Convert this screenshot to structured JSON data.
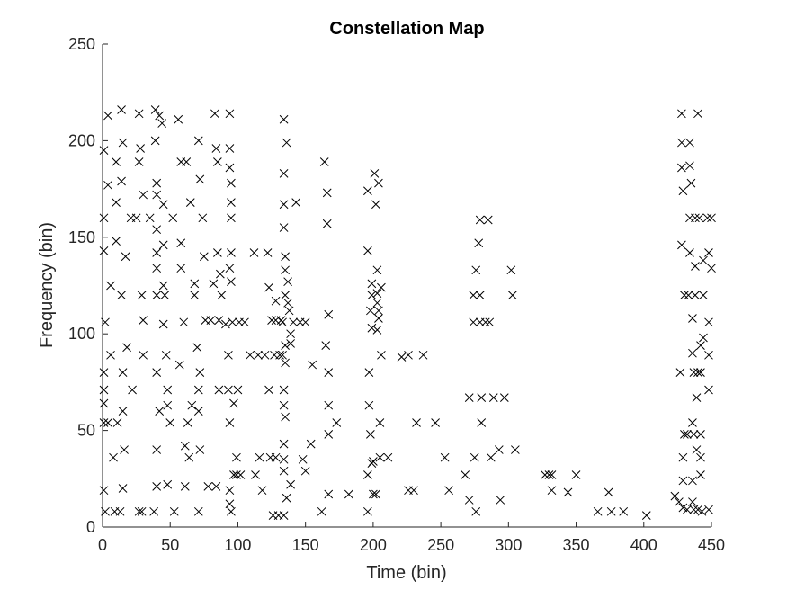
{
  "chart_data": {
    "type": "scatter",
    "title": "Constellation Map",
    "xlabel": "Time (bin)",
    "ylabel": "Frequency (bin)",
    "xlim": [
      0,
      450
    ],
    "ylim": [
      0,
      250
    ],
    "xticks": [
      0,
      50,
      100,
      150,
      200,
      250,
      300,
      350,
      400,
      450
    ],
    "yticks": [
      0,
      50,
      100,
      150,
      200,
      250
    ],
    "marker": "x",
    "marker_color": "#000000",
    "grid": false,
    "box": false,
    "points": [
      [
        1,
        195
      ],
      [
        1,
        160
      ],
      [
        1,
        143
      ],
      [
        2,
        106
      ],
      [
        1,
        80
      ],
      [
        1,
        71
      ],
      [
        1,
        64
      ],
      [
        1,
        54
      ],
      [
        1,
        19
      ],
      [
        2,
        8
      ],
      [
        4,
        213
      ],
      [
        4,
        177
      ],
      [
        6,
        125
      ],
      [
        6,
        89
      ],
      [
        4,
        54
      ],
      [
        9,
        8
      ],
      [
        10,
        189
      ],
      [
        10,
        168
      ],
      [
        10,
        148
      ],
      [
        8,
        36
      ],
      [
        11,
        54
      ],
      [
        13,
        8
      ],
      [
        14,
        216
      ],
      [
        15,
        199
      ],
      [
        14,
        179
      ],
      [
        14,
        120
      ],
      [
        15,
        80
      ],
      [
        15,
        60
      ],
      [
        16,
        40
      ],
      [
        15,
        20
      ],
      [
        17,
        140
      ],
      [
        18,
        93
      ],
      [
        21,
        160
      ],
      [
        22,
        71
      ],
      [
        25,
        160
      ],
      [
        27,
        214
      ],
      [
        27,
        189
      ],
      [
        28,
        196
      ],
      [
        27,
        8
      ],
      [
        29,
        8
      ],
      [
        29,
        120
      ],
      [
        30,
        172
      ],
      [
        30,
        107
      ],
      [
        30,
        89
      ],
      [
        35,
        160
      ],
      [
        38,
        8
      ],
      [
        39,
        200
      ],
      [
        39,
        216
      ],
      [
        40,
        178
      ],
      [
        40,
        172
      ],
      [
        40,
        154
      ],
      [
        40,
        142
      ],
      [
        40,
        134
      ],
      [
        40,
        120
      ],
      [
        40,
        80
      ],
      [
        40,
        40
      ],
      [
        40,
        21
      ],
      [
        42,
        60
      ],
      [
        42,
        213
      ],
      [
        44,
        209
      ],
      [
        45,
        167
      ],
      [
        45,
        146
      ],
      [
        45,
        125
      ],
      [
        45,
        105
      ],
      [
        46,
        120
      ],
      [
        47,
        89
      ],
      [
        48,
        71
      ],
      [
        48,
        63
      ],
      [
        48,
        22
      ],
      [
        50,
        54
      ],
      [
        52,
        160
      ],
      [
        53,
        8
      ],
      [
        56,
        211
      ],
      [
        57,
        84
      ],
      [
        58,
        189
      ],
      [
        58,
        147
      ],
      [
        58,
        134
      ],
      [
        60,
        106
      ],
      [
        61,
        42
      ],
      [
        61,
        21
      ],
      [
        62,
        189
      ],
      [
        63,
        54
      ],
      [
        64,
        36
      ],
      [
        65,
        168
      ],
      [
        66,
        63
      ],
      [
        68,
        126
      ],
      [
        68,
        120
      ],
      [
        70,
        93
      ],
      [
        71,
        71
      ],
      [
        71,
        60
      ],
      [
        71,
        200
      ],
      [
        71,
        8
      ],
      [
        72,
        80
      ],
      [
        72,
        40
      ],
      [
        72,
        180
      ],
      [
        74,
        160
      ],
      [
        75,
        140
      ],
      [
        76,
        107
      ],
      [
        78,
        21
      ],
      [
        80,
        107
      ],
      [
        82,
        126
      ],
      [
        83,
        214
      ],
      [
        84,
        196
      ],
      [
        84,
        21
      ],
      [
        85,
        189
      ],
      [
        85,
        142
      ],
      [
        86,
        107
      ],
      [
        86,
        71
      ],
      [
        87,
        131
      ],
      [
        88,
        120
      ],
      [
        91,
        105
      ],
      [
        94,
        214
      ],
      [
        94,
        196
      ],
      [
        94,
        186
      ],
      [
        93,
        71
      ],
      [
        94,
        54
      ],
      [
        94,
        134
      ],
      [
        93,
        89
      ],
      [
        94,
        12
      ],
      [
        95,
        8
      ],
      [
        94,
        19
      ],
      [
        95,
        178
      ],
      [
        95,
        168
      ],
      [
        95,
        160
      ],
      [
        95,
        142
      ],
      [
        95,
        127
      ],
      [
        96,
        106
      ],
      [
        97,
        64
      ],
      [
        97,
        27
      ],
      [
        99,
        27
      ],
      [
        99,
        36
      ],
      [
        100,
        71
      ],
      [
        101,
        106
      ],
      [
        102,
        27
      ],
      [
        105,
        106
      ],
      [
        109,
        89
      ],
      [
        112,
        142
      ],
      [
        113,
        27
      ],
      [
        115,
        89
      ],
      [
        116,
        36
      ],
      [
        118,
        19
      ],
      [
        120,
        89
      ],
      [
        122,
        142
      ],
      [
        123,
        124
      ],
      [
        123,
        71
      ],
      [
        124,
        36
      ],
      [
        125,
        107
      ],
      [
        126,
        6
      ],
      [
        127,
        89
      ],
      [
        128,
        117
      ],
      [
        128,
        107
      ],
      [
        128,
        36
      ],
      [
        130,
        6
      ],
      [
        131,
        89
      ],
      [
        132,
        107
      ],
      [
        133,
        106
      ],
      [
        133,
        89
      ],
      [
        134,
        211
      ],
      [
        134,
        183
      ],
      [
        134,
        167
      ],
      [
        134,
        155
      ],
      [
        135,
        140
      ],
      [
        135,
        133
      ],
      [
        135,
        120
      ],
      [
        135,
        94
      ],
      [
        135,
        85
      ],
      [
        134,
        71
      ],
      [
        134,
        63
      ],
      [
        135,
        57
      ],
      [
        134,
        43
      ],
      [
        134,
        35
      ],
      [
        134,
        29
      ],
      [
        134,
        6
      ],
      [
        136,
        199
      ],
      [
        136,
        15
      ],
      [
        137,
        127
      ],
      [
        137,
        116
      ],
      [
        138,
        112
      ],
      [
        139,
        100
      ],
      [
        139,
        95
      ],
      [
        139,
        22
      ],
      [
        141,
        106
      ],
      [
        143,
        168
      ],
      [
        146,
        106
      ],
      [
        148,
        35
      ],
      [
        150,
        106
      ],
      [
        150,
        29
      ],
      [
        154,
        43
      ],
      [
        155,
        84
      ],
      [
        162,
        8
      ],
      [
        164,
        189
      ],
      [
        165,
        94
      ],
      [
        166,
        173
      ],
      [
        166,
        157
      ],
      [
        167,
        110
      ],
      [
        167,
        80
      ],
      [
        167,
        63
      ],
      [
        167,
        48
      ],
      [
        167,
        17
      ],
      [
        173,
        54
      ],
      [
        182,
        17
      ],
      [
        196,
        8
      ],
      [
        196,
        27
      ],
      [
        196,
        174
      ],
      [
        196,
        143
      ],
      [
        197,
        80
      ],
      [
        197,
        63
      ],
      [
        198,
        112
      ],
      [
        198,
        48
      ],
      [
        199,
        33
      ],
      [
        199,
        126
      ],
      [
        199,
        120
      ],
      [
        199,
        103
      ],
      [
        200,
        34
      ],
      [
        200,
        17
      ],
      [
        201,
        183
      ],
      [
        202,
        167
      ],
      [
        202,
        17
      ],
      [
        203,
        121
      ],
      [
        203,
        116
      ],
      [
        203,
        133
      ],
      [
        203,
        102
      ],
      [
        204,
        178
      ],
      [
        204,
        112
      ],
      [
        204,
        108
      ],
      [
        205,
        36
      ],
      [
        205,
        54
      ],
      [
        206,
        89
      ],
      [
        206,
        124
      ],
      [
        211,
        36
      ],
      [
        221,
        88
      ],
      [
        226,
        89
      ],
      [
        226,
        19
      ],
      [
        230,
        19
      ],
      [
        232,
        54
      ],
      [
        237,
        89
      ],
      [
        246,
        54
      ],
      [
        253,
        36
      ],
      [
        256,
        19
      ],
      [
        268,
        27
      ],
      [
        271,
        67
      ],
      [
        271,
        14
      ],
      [
        274,
        106
      ],
      [
        274,
        120
      ],
      [
        275,
        36
      ],
      [
        276,
        133
      ],
      [
        276,
        8
      ],
      [
        278,
        147
      ],
      [
        279,
        159
      ],
      [
        279,
        120
      ],
      [
        279,
        106
      ],
      [
        280,
        67
      ],
      [
        280,
        54
      ],
      [
        283,
        106
      ],
      [
        285,
        159
      ],
      [
        286,
        106
      ],
      [
        287,
        36
      ],
      [
        289,
        67
      ],
      [
        293,
        40
      ],
      [
        294,
        14
      ],
      [
        297,
        67
      ],
      [
        302,
        133
      ],
      [
        303,
        120
      ],
      [
        305,
        40
      ],
      [
        327,
        27
      ],
      [
        330,
        27
      ],
      [
        332,
        19
      ],
      [
        332,
        27
      ],
      [
        344,
        18
      ],
      [
        350,
        27
      ],
      [
        366,
        8
      ],
      [
        374,
        18
      ],
      [
        376,
        8
      ],
      [
        385,
        8
      ],
      [
        402,
        6
      ],
      [
        423,
        16
      ],
      [
        426,
        13
      ],
      [
        427,
        80
      ],
      [
        428,
        146
      ],
      [
        429,
        174
      ],
      [
        428,
        186
      ],
      [
        428,
        199
      ],
      [
        428,
        214
      ],
      [
        429,
        36
      ],
      [
        429,
        24
      ],
      [
        429,
        10
      ],
      [
        430,
        48
      ],
      [
        430,
        120
      ],
      [
        432,
        9
      ],
      [
        432,
        48
      ],
      [
        433,
        120
      ],
      [
        434,
        160
      ],
      [
        434,
        187
      ],
      [
        434,
        199
      ],
      [
        435,
        178
      ],
      [
        434,
        142
      ],
      [
        436,
        108
      ],
      [
        436,
        90
      ],
      [
        436,
        54
      ],
      [
        436,
        24
      ],
      [
        436,
        13
      ],
      [
        437,
        9
      ],
      [
        437,
        80
      ],
      [
        437,
        48
      ],
      [
        438,
        120
      ],
      [
        438,
        135
      ],
      [
        438,
        160
      ],
      [
        439,
        67
      ],
      [
        439,
        40
      ],
      [
        440,
        214
      ],
      [
        440,
        80
      ],
      [
        440,
        9
      ],
      [
        442,
        94
      ],
      [
        441,
        160
      ],
      [
        442,
        80
      ],
      [
        442,
        48
      ],
      [
        442,
        27
      ],
      [
        442,
        36
      ],
      [
        443,
        8
      ],
      [
        444,
        120
      ],
      [
        444,
        98
      ],
      [
        444,
        138
      ],
      [
        447,
        160
      ],
      [
        448,
        9
      ],
      [
        448,
        142
      ],
      [
        448,
        106
      ],
      [
        448,
        89
      ],
      [
        448,
        71
      ],
      [
        450,
        134
      ],
      [
        450,
        160
      ]
    ]
  }
}
